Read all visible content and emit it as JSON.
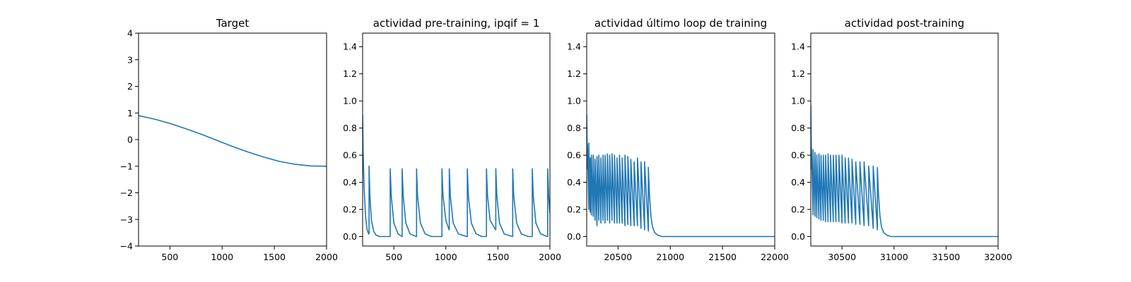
{
  "chart_data": [
    {
      "type": "line",
      "title": "Target",
      "xlim": [
        200,
        2000
      ],
      "ylim": [
        -4,
        4
      ],
      "xticks": [
        500,
        1000,
        1500,
        2000
      ],
      "yticks": [
        -4,
        -3,
        -2,
        -1,
        0,
        1,
        2,
        3,
        4
      ],
      "xtick_labels": [
        "500",
        "1000",
        "1500",
        "2000"
      ],
      "ytick_labels": [
        "−4",
        "−3",
        "−2",
        "−1",
        "0",
        "1",
        "2",
        "3",
        "4"
      ],
      "line_color": "#1f77b4",
      "series": [
        {
          "x": [
            200,
            350,
            500,
            650,
            800,
            950,
            1100,
            1250,
            1400,
            1550,
            1700,
            1850,
            2000
          ],
          "y": [
            0.9,
            0.77,
            0.61,
            0.41,
            0.2,
            -0.03,
            -0.26,
            -0.47,
            -0.66,
            -0.82,
            -0.93,
            -0.99,
            -1.0
          ]
        }
      ]
    },
    {
      "type": "line",
      "title": "actividad pre-training, ipqif = 1",
      "xlim": [
        200,
        2000
      ],
      "ylim": [
        -0.07,
        1.5
      ],
      "xticks": [
        500,
        1000,
        1500,
        2000
      ],
      "yticks": [
        0.0,
        0.2,
        0.4,
        0.6,
        0.8,
        1.0,
        1.2,
        1.4
      ],
      "xtick_labels": [
        "500",
        "1000",
        "1500",
        "2000"
      ],
      "ytick_labels": [
        "0.0",
        "0.2",
        "0.4",
        "0.6",
        "0.8",
        "1.0",
        "1.2",
        "1.4"
      ],
      "line_color": "#1f77b4",
      "series": [
        {
          "x": [
            200,
            205,
            215,
            228,
            243,
            258,
            262,
            262,
            270,
            285,
            305,
            330,
            360,
            400,
            455,
            465,
            465,
            475,
            500,
            540,
            578,
            580,
            580,
            590,
            615,
            655,
            715,
            718,
            718,
            728,
            755,
            800,
            860,
            960,
            962,
            962,
            972,
            1000,
            1031,
            1033,
            1033,
            1043,
            1070,
            1120,
            1200,
            1206,
            1206,
            1216,
            1245,
            1290,
            1345,
            1388,
            1390,
            1390,
            1400,
            1425,
            1478,
            1480,
            1480,
            1490,
            1515,
            1560,
            1640,
            1642,
            1642,
            1652,
            1680,
            1725,
            1790,
            1828,
            1830,
            1830,
            1840,
            1865,
            1910,
            1975,
            1978,
            1978,
            1988,
            2000
          ],
          "y": [
            0.9,
            0.62,
            0.35,
            0.15,
            0.05,
            0.02,
            0.02,
            0.52,
            0.3,
            0.12,
            0.04,
            0.01,
            0.0,
            0.0,
            0.0,
            0.0,
            0.5,
            0.3,
            0.1,
            0.02,
            0.0,
            0.0,
            0.5,
            0.3,
            0.1,
            0.02,
            0.0,
            0.0,
            0.5,
            0.3,
            0.1,
            0.02,
            0.0,
            0.0,
            0.0,
            0.5,
            0.3,
            0.12,
            0.05,
            0.05,
            0.5,
            0.3,
            0.1,
            0.02,
            0.0,
            0.0,
            0.5,
            0.3,
            0.1,
            0.02,
            0.0,
            0.0,
            0.0,
            0.5,
            0.3,
            0.12,
            0.05,
            0.05,
            0.5,
            0.3,
            0.1,
            0.02,
            0.0,
            0.0,
            0.5,
            0.3,
            0.1,
            0.02,
            0.0,
            0.0,
            0.0,
            0.5,
            0.3,
            0.1,
            0.02,
            0.0,
            0.0,
            0.5,
            0.3,
            0.17
          ]
        }
      ]
    },
    {
      "type": "line",
      "title": "actividad último loop de training",
      "xlim": [
        20200,
        22000
      ],
      "ylim": [
        -0.07,
        1.5
      ],
      "xticks": [
        20500,
        21000,
        21500,
        22000
      ],
      "yticks": [
        0.0,
        0.2,
        0.4,
        0.6,
        0.8,
        1.0,
        1.2,
        1.4
      ],
      "xtick_labels": [
        "20500",
        "21000",
        "21500",
        "22000"
      ],
      "ytick_labels": [
        "0.0",
        "0.2",
        "0.4",
        "0.6",
        "0.8",
        "1.0",
        "1.2",
        "1.4"
      ],
      "line_color": "#1f77b4",
      "series": [
        {
          "x": [
            20200,
            20207,
            20207,
            20220,
            20220,
            20233,
            20233,
            20245,
            20245,
            20262,
            20262,
            20280,
            20280,
            20298,
            20298,
            20316,
            20316,
            20336,
            20336,
            20356,
            20356,
            20376,
            20376,
            20398,
            20398,
            20420,
            20420,
            20442,
            20442,
            20466,
            20466,
            20490,
            20490,
            20514,
            20514,
            20540,
            20540,
            20566,
            20566,
            20594,
            20594,
            20622,
            20622,
            20654,
            20654,
            20686,
            20686,
            20720,
            20720,
            20754,
            20754,
            20790,
            20790,
            20800,
            20815,
            20830,
            20850,
            20880,
            20920,
            20980,
            21100,
            21400,
            21700,
            22000
          ],
          "y": [
            0.9,
            0.5,
            0.68,
            0.2,
            0.69,
            0.18,
            0.58,
            0.16,
            0.6,
            0.15,
            0.6,
            0.12,
            0.57,
            0.08,
            0.59,
            0.12,
            0.6,
            0.1,
            0.58,
            0.12,
            0.6,
            0.1,
            0.6,
            0.12,
            0.61,
            0.1,
            0.6,
            0.12,
            0.61,
            0.1,
            0.6,
            0.1,
            0.58,
            0.1,
            0.6,
            0.1,
            0.58,
            0.08,
            0.6,
            0.09,
            0.59,
            0.08,
            0.57,
            0.08,
            0.55,
            0.08,
            0.58,
            0.06,
            0.55,
            0.05,
            0.55,
            0.04,
            0.51,
            0.32,
            0.15,
            0.07,
            0.03,
            0.01,
            0.0,
            0.0,
            0.0,
            0.0,
            0.0,
            0.0
          ]
        }
      ]
    },
    {
      "type": "line",
      "title": "actividad post-training",
      "xlim": [
        30200,
        32000
      ],
      "ylim": [
        -0.07,
        1.5
      ],
      "xticks": [
        30500,
        31000,
        31500,
        32000
      ],
      "yticks": [
        0.0,
        0.2,
        0.4,
        0.6,
        0.8,
        1.0,
        1.2,
        1.4
      ],
      "xtick_labels": [
        "30500",
        "31000",
        "31500",
        "32000"
      ],
      "ytick_labels": [
        "0.0",
        "0.2",
        "0.4",
        "0.6",
        "0.8",
        "1.0",
        "1.2",
        "1.4"
      ],
      "line_color": "#1f77b4",
      "series": [
        {
          "x": [
            30200,
            30207,
            30207,
            30222,
            30222,
            30240,
            30240,
            30258,
            30258,
            30278,
            30278,
            30298,
            30298,
            30320,
            30320,
            30342,
            30342,
            30366,
            30366,
            30390,
            30390,
            30416,
            30416,
            30442,
            30442,
            30470,
            30470,
            30500,
            30500,
            30530,
            30530,
            30562,
            30562,
            30596,
            30596,
            30632,
            30632,
            30672,
            30672,
            30712,
            30712,
            30756,
            30756,
            30800,
            30800,
            30840,
            30840,
            30850,
            30865,
            30880,
            30900,
            30930,
            30970,
            31050,
            31300,
            31600,
            32000
          ],
          "y": [
            0.97,
            0.5,
            0.65,
            0.16,
            0.64,
            0.15,
            0.62,
            0.14,
            0.6,
            0.13,
            0.61,
            0.12,
            0.6,
            0.12,
            0.6,
            0.11,
            0.6,
            0.11,
            0.61,
            0.11,
            0.6,
            0.11,
            0.6,
            0.11,
            0.6,
            0.11,
            0.6,
            0.1,
            0.6,
            0.1,
            0.58,
            0.1,
            0.58,
            0.1,
            0.57,
            0.09,
            0.55,
            0.09,
            0.55,
            0.08,
            0.55,
            0.08,
            0.52,
            0.06,
            0.52,
            0.05,
            0.51,
            0.32,
            0.15,
            0.07,
            0.03,
            0.01,
            0.0,
            0.0,
            0.0,
            0.0,
            0.0
          ]
        }
      ]
    }
  ]
}
